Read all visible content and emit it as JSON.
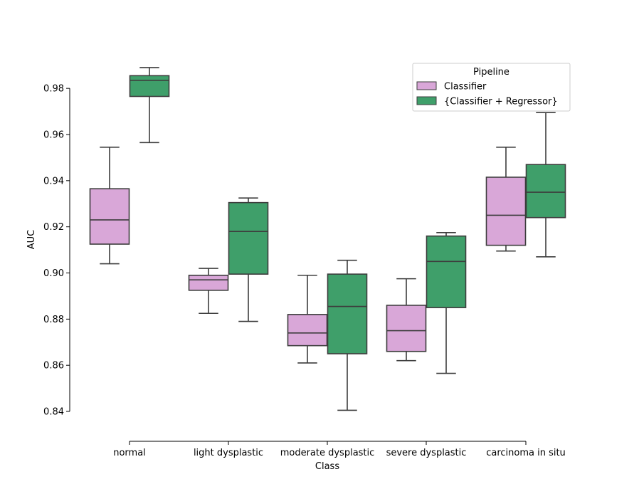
{
  "chart_data": {
    "type": "boxplot",
    "title": "",
    "xlabel": "Class",
    "ylabel": "AUC",
    "categories": [
      "normal",
      "light dysplastic",
      "moderate dysplastic",
      "severe dysplastic",
      "carcinoma in situ"
    ],
    "ylim": [
      0.836,
      0.993
    ],
    "yticks": [
      0.84,
      0.86,
      0.88,
      0.9,
      0.92,
      0.94,
      0.96,
      0.98
    ],
    "ytick_labels": [
      "0.84",
      "0.86",
      "0.88",
      "0.90",
      "0.92",
      "0.94",
      "0.96",
      "0.98"
    ],
    "legend": {
      "title": "Pipeline",
      "placement": "upper-right"
    },
    "series": [
      {
        "name": "Classifier",
        "color": "#d9a7d8",
        "boxes": [
          {
            "min": 0.904,
            "q1": 0.9125,
            "median": 0.923,
            "q3": 0.9365,
            "max": 0.9545
          },
          {
            "min": 0.8825,
            "q1": 0.8925,
            "median": 0.897,
            "q3": 0.899,
            "max": 0.902
          },
          {
            "min": 0.861,
            "q1": 0.8685,
            "median": 0.874,
            "q3": 0.882,
            "max": 0.899
          },
          {
            "min": 0.862,
            "q1": 0.866,
            "median": 0.875,
            "q3": 0.886,
            "max": 0.8975
          },
          {
            "min": 0.9095,
            "q1": 0.912,
            "median": 0.925,
            "q3": 0.9415,
            "max": 0.9545
          }
        ]
      },
      {
        "name": "{Classifier + Regressor}",
        "color": "#3f9f6a",
        "boxes": [
          {
            "min": 0.9565,
            "q1": 0.9765,
            "median": 0.9835,
            "q3": 0.9855,
            "max": 0.989
          },
          {
            "min": 0.879,
            "q1": 0.8995,
            "median": 0.918,
            "q3": 0.9305,
            "max": 0.9325
          },
          {
            "min": 0.8405,
            "q1": 0.865,
            "median": 0.8855,
            "q3": 0.8995,
            "max": 0.9055
          },
          {
            "min": 0.8565,
            "q1": 0.885,
            "median": 0.905,
            "q3": 0.916,
            "max": 0.9175
          },
          {
            "min": 0.907,
            "q1": 0.924,
            "median": 0.935,
            "q3": 0.947,
            "max": 0.9695
          }
        ]
      }
    ]
  }
}
